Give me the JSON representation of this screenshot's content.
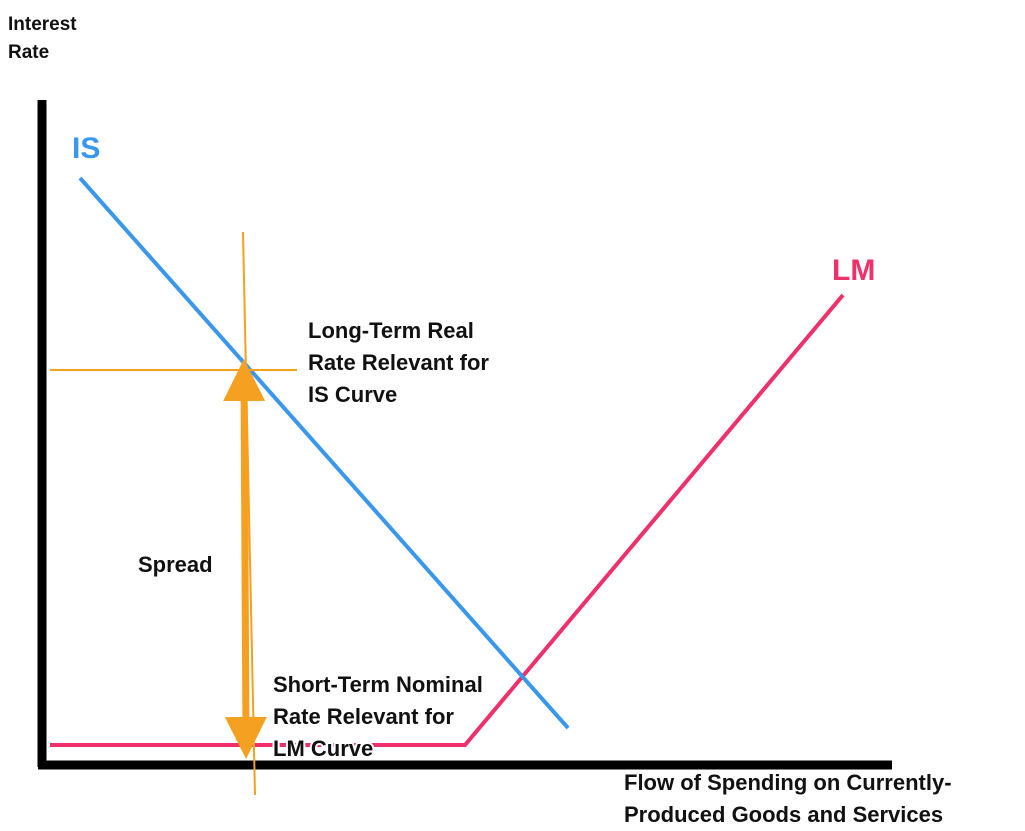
{
  "axes": {
    "y_label": [
      "Interest",
      "Rate"
    ],
    "x_label": [
      "Flow of Spending on Currently-",
      "Produced Goods and Services"
    ]
  },
  "curves": {
    "is": "IS",
    "lm": "LM"
  },
  "annotations": {
    "long_term": [
      "Long-Term Real",
      "Rate Relevant for",
      "IS Curve"
    ],
    "spread": "Spread",
    "short_term": [
      "Short-Term Nominal",
      "Rate Relevant for",
      "LM Curve"
    ]
  }
}
